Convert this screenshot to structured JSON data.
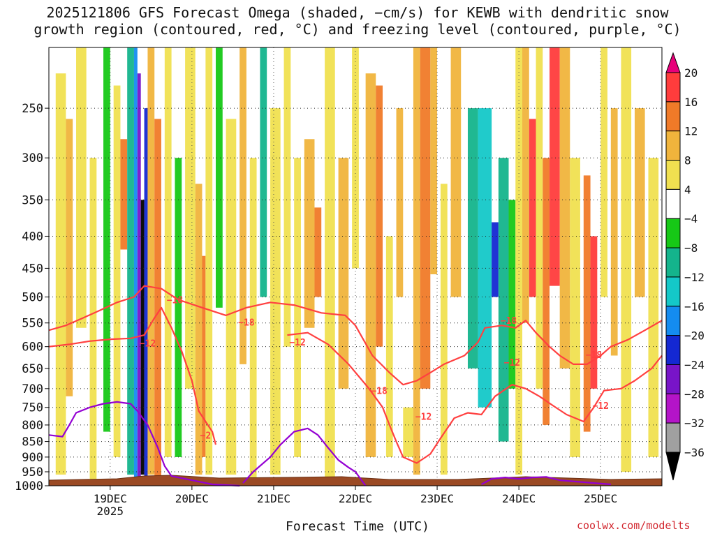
{
  "title_line1": "2025121806 GFS Forecast Omega (shaded, −cm/s) for KEWB with dendritic snow",
  "title_line2": "growth region (contoured, red, °C) and freezing level (contoured, purple, °C)",
  "credit": "coolwx.com/modelts",
  "chart_data": {
    "type": "heatmap",
    "xlabel": "Forecast Time (UTC)",
    "ylabel": "",
    "x_ticks": [
      {
        "label": "19DEC",
        "sub": "2025",
        "t": 18
      },
      {
        "label": "20DEC",
        "t": 42
      },
      {
        "label": "21DEC",
        "t": 66
      },
      {
        "label": "22DEC",
        "t": 90
      },
      {
        "label": "23DEC",
        "t": 114
      },
      {
        "label": "24DEC",
        "t": 138
      },
      {
        "label": "25DEC",
        "t": 162
      }
    ],
    "xlim": [
      0,
      180
    ],
    "y_ticks": [
      250,
      300,
      350,
      400,
      450,
      500,
      550,
      600,
      650,
      700,
      750,
      800,
      850,
      900,
      950,
      1000
    ],
    "ylim": [
      1000,
      200
    ],
    "y_scale": "log",
    "grid": true,
    "colorbar": {
      "labels": [
        20,
        16,
        12,
        8,
        4,
        -4,
        -8,
        -12,
        -16,
        -20,
        -24,
        -28,
        -32,
        -36
      ],
      "colors": [
        "#e8007a",
        "#ff3c3c",
        "#f07a28",
        "#f0b43c",
        "#f0e050",
        "#ffffff",
        "#16c816",
        "#14b48c",
        "#14c8c8",
        "#148cf0",
        "#1428d2",
        "#7814c8",
        "#b414c8",
        "#a0a0a0",
        "#000000"
      ]
    },
    "omega_cells": [
      {
        "t0": 2,
        "t1": 5,
        "p_top": 220,
        "p_bot": 960,
        "v": 5
      },
      {
        "t0": 5,
        "t1": 7,
        "p_top": 260,
        "p_bot": 720,
        "v": 9
      },
      {
        "t0": 8,
        "t1": 11,
        "p_top": 200,
        "p_bot": 560,
        "v": 6
      },
      {
        "t0": 12,
        "t1": 14,
        "p_top": 300,
        "p_bot": 980,
        "v": 5
      },
      {
        "t0": 16,
        "t1": 18,
        "p_top": 200,
        "p_bot": 820,
        "v": -6
      },
      {
        "t0": 19,
        "t1": 21,
        "p_top": 230,
        "p_bot": 900,
        "v": 6
      },
      {
        "t0": 21,
        "t1": 23,
        "p_top": 280,
        "p_bot": 420,
        "v": 13
      },
      {
        "t0": 23,
        "t1": 25,
        "p_top": 200,
        "p_bot": 960,
        "v": -10
      },
      {
        "t0": 25,
        "t1": 26,
        "p_top": 200,
        "p_bot": 980,
        "v": -16
      },
      {
        "t0": 26,
        "t1": 27,
        "p_top": 220,
        "p_bot": 980,
        "v": -24
      },
      {
        "t0": 27,
        "t1": 28,
        "p_top": 350,
        "p_bot": 960,
        "v": -36
      },
      {
        "t0": 28,
        "t1": 29,
        "p_top": 250,
        "p_bot": 980,
        "v": -20
      },
      {
        "t0": 29,
        "t1": 31,
        "p_top": 200,
        "p_bot": 960,
        "v": 10
      },
      {
        "t0": 31,
        "t1": 33,
        "p_top": 260,
        "p_bot": 980,
        "v": 14
      },
      {
        "t0": 34,
        "t1": 36,
        "p_top": 200,
        "p_bot": 900,
        "v": 6
      },
      {
        "t0": 37,
        "t1": 39,
        "p_top": 300,
        "p_bot": 900,
        "v": -7
      },
      {
        "t0": 40,
        "t1": 43,
        "p_top": 200,
        "p_bot": 700,
        "v": 5
      },
      {
        "t0": 43,
        "t1": 45,
        "p_top": 330,
        "p_bot": 960,
        "v": 10
      },
      {
        "t0": 45,
        "t1": 46,
        "p_top": 430,
        "p_bot": 900,
        "v": 14
      },
      {
        "t0": 46,
        "t1": 48,
        "p_top": 200,
        "p_bot": 960,
        "v": 7
      },
      {
        "t0": 49,
        "t1": 51,
        "p_top": 200,
        "p_bot": 520,
        "v": -7
      },
      {
        "t0": 52,
        "t1": 55,
        "p_top": 260,
        "p_bot": 960,
        "v": 6
      },
      {
        "t0": 56,
        "t1": 58,
        "p_top": 200,
        "p_bot": 640,
        "v": 9
      },
      {
        "t0": 59,
        "t1": 61,
        "p_top": 300,
        "p_bot": 980,
        "v": 5
      },
      {
        "t0": 62,
        "t1": 64,
        "p_top": 200,
        "p_bot": 500,
        "v": -8
      },
      {
        "t0": 65,
        "t1": 68,
        "p_top": 250,
        "p_bot": 960,
        "v": 5
      },
      {
        "t0": 69,
        "t1": 71,
        "p_top": 200,
        "p_bot": 600,
        "v": 7
      },
      {
        "t0": 72,
        "t1": 74,
        "p_top": 300,
        "p_bot": 900,
        "v": 6
      },
      {
        "t0": 75,
        "t1": 78,
        "p_top": 280,
        "p_bot": 560,
        "v": 9
      },
      {
        "t0": 78,
        "t1": 80,
        "p_top": 360,
        "p_bot": 500,
        "v": 13
      },
      {
        "t0": 81,
        "t1": 84,
        "p_top": 200,
        "p_bot": 980,
        "v": 6
      },
      {
        "t0": 85,
        "t1": 88,
        "p_top": 300,
        "p_bot": 700,
        "v": 9
      },
      {
        "t0": 89,
        "t1": 91,
        "p_top": 200,
        "p_bot": 450,
        "v": 5
      },
      {
        "t0": 93,
        "t1": 96,
        "p_top": 220,
        "p_bot": 900,
        "v": 8
      },
      {
        "t0": 96,
        "t1": 98,
        "p_top": 230,
        "p_bot": 600,
        "v": 12
      },
      {
        "t0": 99,
        "t1": 101,
        "p_top": 400,
        "p_bot": 900,
        "v": 6
      },
      {
        "t0": 102,
        "t1": 104,
        "p_top": 250,
        "p_bot": 500,
        "v": 9
      },
      {
        "t0": 104,
        "t1": 107,
        "p_top": 750,
        "p_bot": 900,
        "v": 5
      },
      {
        "t0": 107,
        "t1": 109,
        "p_top": 200,
        "p_bot": 960,
        "v": 8
      },
      {
        "t0": 109,
        "t1": 112,
        "p_top": 200,
        "p_bot": 700,
        "v": 13
      },
      {
        "t0": 112,
        "t1": 114,
        "p_top": 200,
        "p_bot": 460,
        "v": 9
      },
      {
        "t0": 115,
        "t1": 117,
        "p_top": 330,
        "p_bot": 960,
        "v": 5
      },
      {
        "t0": 118,
        "t1": 121,
        "p_top": 200,
        "p_bot": 500,
        "v": 9
      },
      {
        "t0": 123,
        "t1": 126,
        "p_top": 250,
        "p_bot": 650,
        "v": -9
      },
      {
        "t0": 126,
        "t1": 130,
        "p_top": 250,
        "p_bot": 750,
        "v": -13
      },
      {
        "t0": 130,
        "t1": 132,
        "p_top": 380,
        "p_bot": 500,
        "v": -21
      },
      {
        "t0": 132,
        "t1": 135,
        "p_top": 300,
        "p_bot": 850,
        "v": -11
      },
      {
        "t0": 135,
        "t1": 137,
        "p_top": 350,
        "p_bot": 700,
        "v": -7
      },
      {
        "t0": 137,
        "t1": 139,
        "p_top": 200,
        "p_bot": 960,
        "v": 6
      },
      {
        "t0": 139,
        "t1": 141,
        "p_top": 200,
        "p_bot": 550,
        "v": 10
      },
      {
        "t0": 141,
        "t1": 143,
        "p_top": 260,
        "p_bot": 500,
        "v": 18
      },
      {
        "t0": 143,
        "t1": 145,
        "p_top": 200,
        "p_bot": 700,
        "v": 7
      },
      {
        "t0": 145,
        "t1": 147,
        "p_top": 300,
        "p_bot": 800,
        "v": 12
      },
      {
        "t0": 147,
        "t1": 150,
        "p_top": 200,
        "p_bot": 480,
        "v": 16
      },
      {
        "t0": 150,
        "t1": 153,
        "p_top": 200,
        "p_bot": 650,
        "v": 9
      },
      {
        "t0": 153,
        "t1": 156,
        "p_top": 300,
        "p_bot": 900,
        "v": 5
      },
      {
        "t0": 157,
        "t1": 159,
        "p_top": 320,
        "p_bot": 820,
        "v": 12
      },
      {
        "t0": 159,
        "t1": 161,
        "p_top": 400,
        "p_bot": 700,
        "v": 17
      },
      {
        "t0": 162,
        "t1": 164,
        "p_top": 200,
        "p_bot": 500,
        "v": 7
      },
      {
        "t0": 165,
        "t1": 167,
        "p_top": 250,
        "p_bot": 620,
        "v": 11
      },
      {
        "t0": 168,
        "t1": 171,
        "p_top": 200,
        "p_bot": 950,
        "v": 6
      },
      {
        "t0": 172,
        "t1": 175,
        "p_top": 250,
        "p_bot": 500,
        "v": 9
      },
      {
        "t0": 176,
        "t1": 179,
        "p_top": 300,
        "p_bot": 900,
        "v": 5
      }
    ],
    "series": [
      {
        "color": "#ff4040",
        "labels": [
          {
            "text": "-18",
            "t": 37,
            "p": 505
          },
          {
            "text": "-18",
            "t": 58,
            "p": 548
          },
          {
            "text": "-12",
            "t": 29,
            "p": 592
          },
          {
            "text": "-12",
            "t": 73,
            "p": 590
          },
          {
            "text": "-18",
            "t": 97,
            "p": 705
          },
          {
            "text": "-12",
            "t": 110,
            "p": 775
          },
          {
            "text": "-18",
            "t": 135,
            "p": 545
          },
          {
            "text": "-12",
            "t": 136,
            "p": 635
          },
          {
            "text": "-18",
            "t": 160,
            "p": 618
          },
          {
            "text": "-12",
            "t": 162,
            "p": 745
          },
          {
            "text": "-2",
            "t": 46,
            "p": 830
          }
        ],
        "lines": [
          [
            [
              0,
              565
            ],
            [
              5,
              555
            ],
            [
              10,
              540
            ],
            [
              15,
              525
            ],
            [
              20,
              510
            ],
            [
              25,
              500
            ],
            [
              28,
              480
            ],
            [
              33,
              485
            ],
            [
              38,
              505
            ],
            [
              45,
              520
            ],
            [
              52,
              535
            ],
            [
              58,
              520
            ],
            [
              65,
              510
            ],
            [
              72,
              515
            ],
            [
              80,
              530
            ],
            [
              87,
              535
            ],
            [
              90,
              555
            ],
            [
              95,
              620
            ],
            [
              100,
              660
            ],
            [
              104,
              690
            ],
            [
              108,
              680
            ],
            [
              112,
              660
            ],
            [
              116,
              640
            ],
            [
              122,
              620
            ],
            [
              126,
              590
            ],
            [
              128,
              560
            ],
            [
              133,
              555
            ],
            [
              137,
              560
            ],
            [
              140,
              545
            ],
            [
              143,
              570
            ],
            [
              147,
              600
            ],
            [
              150,
              620
            ],
            [
              154,
              640
            ],
            [
              158,
              640
            ],
            [
              162,
              620
            ],
            [
              165,
              600
            ],
            [
              170,
              585
            ],
            [
              175,
              565
            ],
            [
              180,
              545
            ]
          ],
          [
            [
              0,
              600
            ],
            [
              6,
              595
            ],
            [
              12,
              588
            ],
            [
              18,
              584
            ],
            [
              24,
              582
            ],
            [
              28,
              575
            ],
            [
              31,
              540
            ],
            [
              33,
              520
            ],
            [
              36,
              560
            ],
            [
              39,
              610
            ],
            [
              42,
              680
            ],
            [
              44,
              760
            ],
            [
              46,
              790
            ],
            [
              48,
              820
            ],
            [
              49,
              860
            ]
          ],
          [
            [
              70,
              575
            ],
            [
              76,
              570
            ],
            [
              82,
              595
            ],
            [
              88,
              640
            ],
            [
              94,
              700
            ],
            [
              98,
              750
            ],
            [
              100,
              800
            ],
            [
              102,
              850
            ],
            [
              104,
              900
            ],
            [
              108,
              920
            ],
            [
              112,
              890
            ],
            [
              115,
              840
            ],
            [
              119,
              780
            ],
            [
              123,
              765
            ],
            [
              127,
              770
            ],
            [
              131,
              720
            ],
            [
              136,
              690
            ],
            [
              140,
              700
            ],
            [
              144,
              720
            ],
            [
              148,
              745
            ],
            [
              152,
              770
            ],
            [
              157,
              790
            ],
            [
              160,
              750
            ],
            [
              163,
              705
            ],
            [
              168,
              700
            ],
            [
              172,
              680
            ],
            [
              177,
              650
            ],
            [
              180,
              620
            ]
          ]
        ]
      },
      {
        "color": "#9400d3",
        "lines": [
          [
            [
              0,
              830
            ],
            [
              4,
              835
            ],
            [
              6,
              800
            ],
            [
              8,
              765
            ],
            [
              12,
              750
            ],
            [
              16,
              740
            ],
            [
              20,
              735
            ],
            [
              24,
              740
            ],
            [
              26,
              760
            ],
            [
              29,
              800
            ],
            [
              32,
              870
            ],
            [
              34,
              930
            ],
            [
              36,
              965
            ],
            [
              40,
              975
            ],
            [
              48,
              995
            ],
            [
              56,
              1000
            ]
          ],
          [
            [
              57,
              990
            ],
            [
              60,
              950
            ],
            [
              65,
              900
            ],
            [
              68,
              860
            ],
            [
              72,
              820
            ],
            [
              76,
              810
            ],
            [
              79,
              830
            ],
            [
              82,
              870
            ],
            [
              85,
              910
            ],
            [
              88,
              935
            ],
            [
              90,
              950
            ],
            [
              93,
              1000
            ]
          ],
          [
            [
              127,
              995
            ],
            [
              130,
              975
            ],
            [
              134,
              970
            ],
            [
              138,
              975
            ],
            [
              142,
              970
            ],
            [
              146,
              968
            ],
            [
              150,
              980
            ],
            [
              155,
              985
            ],
            [
              160,
              990
            ],
            [
              165,
              995
            ]
          ]
        ]
      }
    ]
  }
}
